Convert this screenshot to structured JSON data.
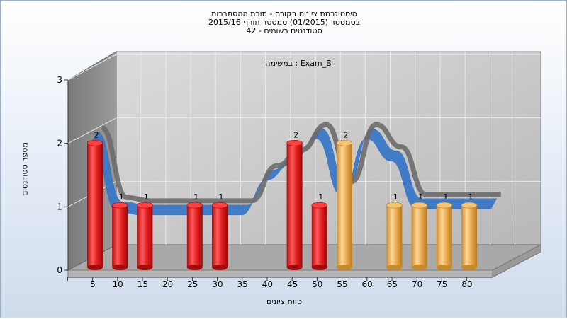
{
  "chart_data": {
    "type": "bar",
    "title": [
      "היסטוגרמת ציונים בקורס - תורת ההסתברות",
      "בסמסטר  (01/2015)  סמסטר חורף 2015/16",
      "סטודנטים רשומים - 42"
    ],
    "subtitle": "במשימה : Exam_B",
    "xlabel": "טווח ציונים",
    "ylabel": "מספר סטודנטים",
    "ylim": [
      0,
      3
    ],
    "yticks": [
      "0",
      "1",
      "2",
      "3"
    ],
    "categories": [
      "5",
      "10",
      "15",
      "20",
      "25",
      "30",
      "35",
      "40",
      "45",
      "50",
      "55",
      "60",
      "65",
      "70",
      "75",
      "80"
    ],
    "values": [
      2,
      1,
      1,
      0,
      1,
      1,
      0,
      0,
      2,
      1,
      2,
      0,
      1,
      1,
      1,
      1
    ],
    "value_labels": [
      "2",
      "1",
      "1",
      "",
      "1",
      "1",
      "",
      "",
      "2",
      "1",
      "2",
      "",
      "1",
      "1",
      "1",
      "1"
    ],
    "bar_colors": [
      "#dd1f1f",
      "#dd1f1f",
      "#dd1f1f",
      "#dd1f1f",
      "#dd1f1f",
      "#dd1f1f",
      "#dd1f1f",
      "#dd1f1f",
      "#dd1f1f",
      "#dd1f1f",
      "#e9a63f",
      "#e9a63f",
      "#e9a63f",
      "#e9a63f",
      "#e9a63f",
      "#e9a63f"
    ],
    "curve_colors": {
      "front": "#3a78c9",
      "back": "#6b6b6b"
    },
    "grid": true,
    "legend": "none"
  }
}
